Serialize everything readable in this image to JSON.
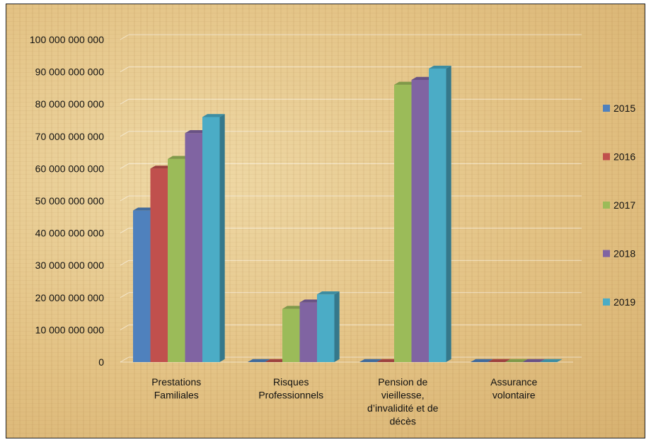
{
  "chart_data": {
    "type": "bar",
    "categories": [
      [
        "Prestations",
        "Familiales"
      ],
      [
        "Risques",
        "Professionnels"
      ],
      [
        "Pension de",
        "vieillesse,",
        "d’invalidité et de",
        "décès"
      ],
      [
        "Assurance",
        "volontaire"
      ]
    ],
    "series": [
      {
        "name": "2015",
        "color": "#4f81bd",
        "values": [
          47000000000,
          0,
          0,
          0
        ]
      },
      {
        "name": "2016",
        "color": "#c0504d",
        "values": [
          60000000000,
          0,
          0,
          0
        ]
      },
      {
        "name": "2017",
        "color": "#9bbb59",
        "values": [
          63000000000,
          16500000000,
          86000000000,
          0
        ]
      },
      {
        "name": "2018",
        "color": "#8064a2",
        "values": [
          71000000000,
          18500000000,
          87500000000,
          0
        ]
      },
      {
        "name": "2019",
        "color": "#4bacc6",
        "values": [
          76000000000,
          21000000000,
          91000000000,
          0
        ]
      }
    ],
    "yticks": [
      "0",
      "10 000 000 000",
      "20 000 000 000",
      "30 000 000 000",
      "40 000 000 000",
      "50 000 000 000",
      "60 000 000 000",
      "70 000 000 000",
      "80 000 000 000",
      "90 000 000 000",
      "100 000 000 000"
    ],
    "ylim": [
      0,
      100000000000
    ],
    "grid": true,
    "legend_position": "right",
    "style": "3d-clustered-column"
  }
}
